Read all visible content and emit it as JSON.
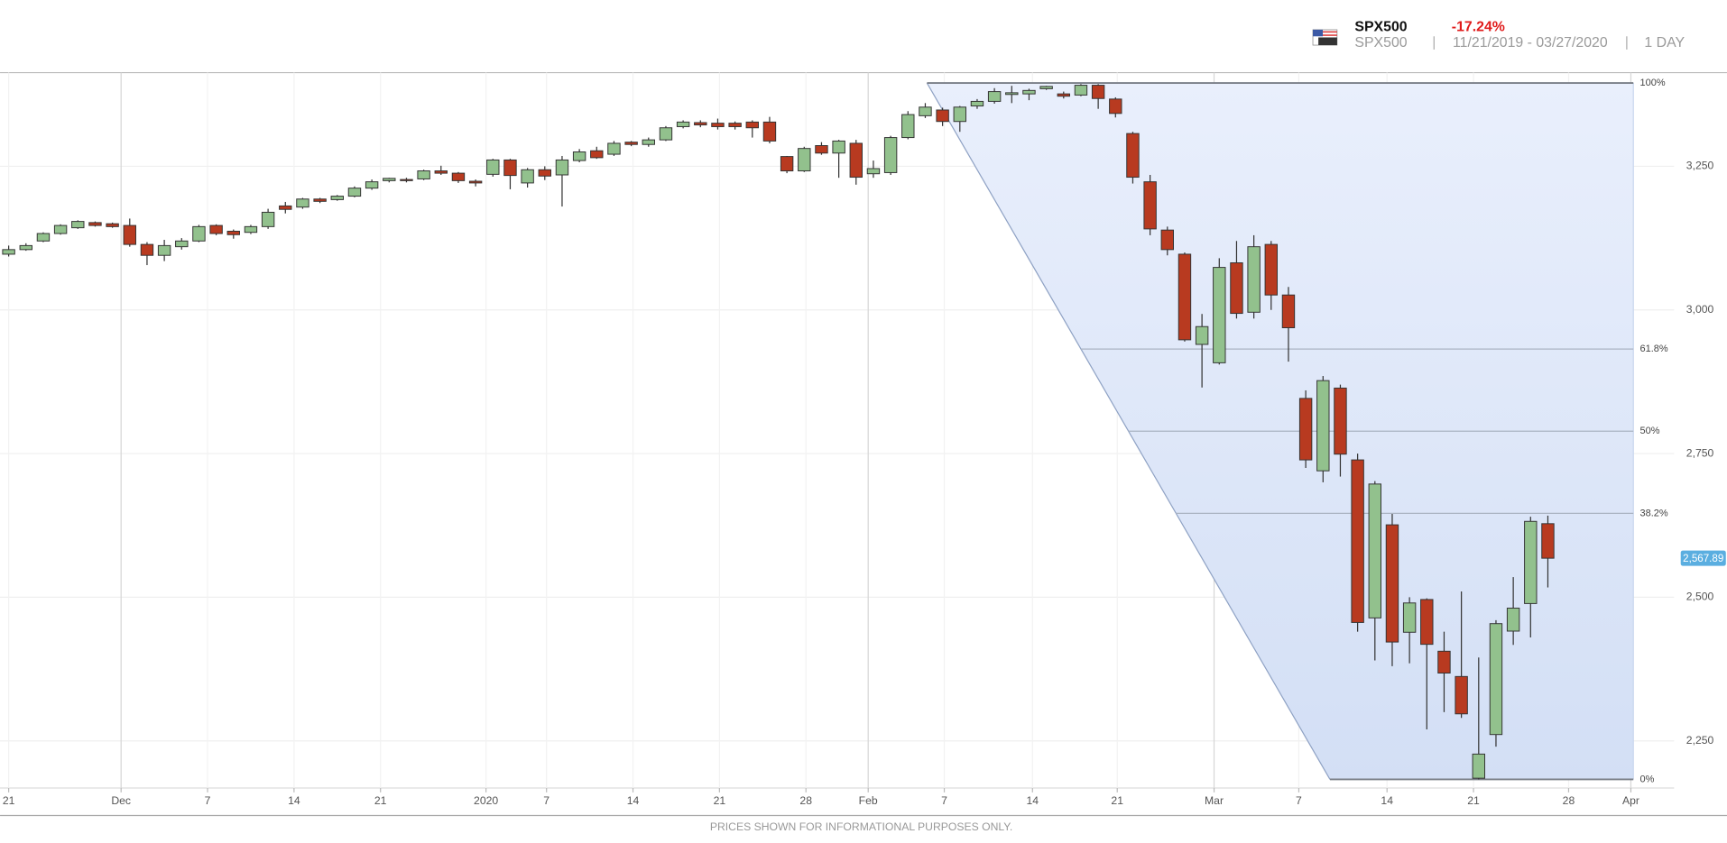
{
  "header": {
    "symbol": "SPX500",
    "change": "-17.24%",
    "symbol_sub": "SPX500",
    "date_range": "11/21/2019 - 03/27/2020",
    "interval": "1 DAY"
  },
  "footer": "PRICES SHOWN FOR INFORMATIONAL PURPOSES ONLY.",
  "chart_data": {
    "type": "candlestick",
    "up_color": "#92c18d",
    "down_color": "#b83a20",
    "open": [
      3097,
      3105,
      3120,
      3133,
      3143,
      3152,
      3150,
      3147,
      3114,
      3095,
      3110,
      3120,
      3147,
      3137,
      3135,
      3145,
      3181,
      3179,
      3193,
      3192,
      3198,
      3212,
      3225,
      3227,
      3228,
      3242,
      3238,
      3224,
      3236,
      3261,
      3221,
      3244,
      3235,
      3260,
      3277,
      3271,
      3292,
      3288,
      3296,
      3319,
      3326,
      3325,
      3325,
      3327,
      3327,
      3267,
      3242,
      3286,
      3273,
      3290,
      3237,
      3239,
      3300,
      3338,
      3348,
      3328,
      3355,
      3363,
      3375,
      3376,
      3385,
      3376,
      3374,
      3391,
      3367,
      3307,
      3223,
      3139,
      3097,
      2940,
      2908,
      3082,
      2996,
      3114,
      3026,
      2846,
      2720,
      2864,
      2739,
      2464,
      2626,
      2439,
      2496,
      2406,
      2362,
      2185,
      2261,
      2441,
      2489,
      2628
    ],
    "high": [
      3112,
      3116,
      3135,
      3149,
      3156,
      3154,
      3152,
      3159,
      3118,
      3122,
      3125,
      3148,
      3149,
      3140,
      3148,
      3176,
      3188,
      3195,
      3195,
      3200,
      3215,
      3227,
      3230,
      3230,
      3244,
      3251,
      3240,
      3227,
      3263,
      3263,
      3247,
      3250,
      3268,
      3280,
      3284,
      3294,
      3294,
      3300,
      3320,
      3330,
      3330,
      3333,
      3328,
      3330,
      3336,
      3268,
      3284,
      3292,
      3296,
      3296,
      3260,
      3303,
      3346,
      3360,
      3352,
      3355,
      3367,
      3386,
      3390,
      3385,
      3390,
      3380,
      3393,
      3393,
      3370,
      3310,
      3235,
      3145,
      3100,
      2993,
      3090,
      3120,
      3130,
      3120,
      3040,
      2860,
      2885,
      2870,
      2750,
      2702,
      2645,
      2500,
      2498,
      2440,
      2510,
      2395,
      2460,
      2535,
      2640,
      2642
    ],
    "low": [
      3093,
      3103,
      3118,
      3131,
      3141,
      3145,
      3143,
      3110,
      3078,
      3085,
      3105,
      3118,
      3130,
      3124,
      3132,
      3141,
      3168,
      3176,
      3186,
      3190,
      3196,
      3209,
      3222,
      3222,
      3226,
      3235,
      3221,
      3215,
      3232,
      3210,
      3213,
      3226,
      3180,
      3257,
      3263,
      3268,
      3285,
      3284,
      3294,
      3316,
      3318,
      3314,
      3314,
      3300,
      3290,
      3238,
      3240,
      3270,
      3230,
      3218,
      3230,
      3235,
      3297,
      3334,
      3320,
      3310,
      3350,
      3359,
      3360,
      3365,
      3383,
      3368,
      3372,
      3350,
      3335,
      3220,
      3130,
      3095,
      2945,
      2865,
      2905,
      2985,
      2985,
      3000,
      2910,
      2725,
      2700,
      2710,
      2440,
      2390,
      2380,
      2385,
      2270,
      2300,
      2290,
      2183,
      2240,
      2417,
      2430,
      2517
    ],
    "close": [
      3105,
      3112,
      3133,
      3147,
      3154,
      3147,
      3145,
      3114,
      3095,
      3112,
      3120,
      3145,
      3133,
      3131,
      3145,
      3170,
      3175,
      3193,
      3189,
      3198,
      3212,
      3223,
      3229,
      3225,
      3242,
      3238,
      3225,
      3221,
      3261,
      3234,
      3244,
      3233,
      3261,
      3275,
      3265,
      3290,
      3288,
      3296,
      3317,
      3327,
      3322,
      3319,
      3319,
      3317,
      3294,
      3242,
      3281,
      3273,
      3294,
      3231,
      3246,
      3300,
      3340,
      3353,
      3328,
      3353,
      3363,
      3380,
      3378,
      3382,
      3389,
      3372,
      3391,
      3368,
      3342,
      3231,
      3141,
      3105,
      2948,
      2971,
      3074,
      2994,
      3110,
      3026,
      2969,
      2739,
      2877,
      2749,
      2456,
      2697,
      2422,
      2490,
      2418,
      2368,
      2297,
      2227,
      2454,
      2481,
      2632,
      2567.89
    ],
    "xlim": [
      -0.5,
      96.3
    ],
    "xticks": [
      {
        "value": 0,
        "label": "21"
      },
      {
        "value": 6.5,
        "label": "Dec"
      },
      {
        "value": 11.5,
        "label": "7"
      },
      {
        "value": 16.5,
        "label": "14"
      },
      {
        "value": 21.5,
        "label": "21"
      },
      {
        "value": 27.6,
        "label": "2020"
      },
      {
        "value": 31.1,
        "label": "7"
      },
      {
        "value": 36.1,
        "label": "14"
      },
      {
        "value": 41.1,
        "label": "21"
      },
      {
        "value": 46.1,
        "label": "28"
      },
      {
        "value": 49.7,
        "label": "Feb"
      },
      {
        "value": 54.1,
        "label": "7"
      },
      {
        "value": 59.2,
        "label": "14"
      },
      {
        "value": 64.1,
        "label": "21"
      },
      {
        "value": 69.7,
        "label": "Mar"
      },
      {
        "value": 74.6,
        "label": "7"
      },
      {
        "value": 79.7,
        "label": "14"
      },
      {
        "value": 84.7,
        "label": "21"
      },
      {
        "value": 90.2,
        "label": "28"
      },
      {
        "value": 93.8,
        "label": "Apr"
      }
    ],
    "ylim": [
      2168,
      3413
    ],
    "yticks": [
      {
        "value": 2250,
        "label": "2,250"
      },
      {
        "value": 2500,
        "label": "2,500"
      },
      {
        "value": 2750,
        "label": "2,750"
      },
      {
        "value": 3000,
        "label": "3,000"
      },
      {
        "value": 3250,
        "label": "3,250"
      }
    ],
    "grid": true,
    "last_price": {
      "value": 2567.89,
      "label": "2,567.89"
    },
    "last_price_color": "#5aaee0",
    "fibonacci": {
      "high": 3395,
      "low": 2183,
      "start_x": 53.1,
      "end_x": 76.4,
      "levels": [
        {
          "value": 100,
          "label": "100%"
        },
        {
          "value": 61.8,
          "label": "61.8%"
        },
        {
          "value": 50,
          "label": "50%"
        },
        {
          "value": 38.2,
          "label": "38.2%"
        },
        {
          "value": 0,
          "label": "0%"
        }
      ]
    }
  }
}
